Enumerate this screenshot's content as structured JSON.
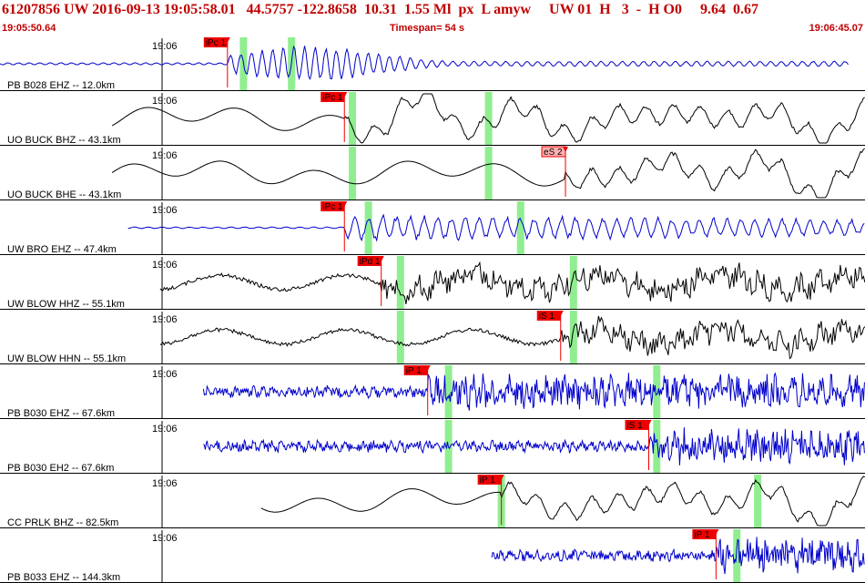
{
  "header": {
    "event_line": "61207856 UW 2016-09-13 19:05:58.01   44.5757 -122.8658  10.31  1.55 Ml  px  L amyw     UW 01  H   3  -  H O0     9.64  0.67",
    "start_time": "19:05:50.64",
    "timespan": "Timespan=  54 s",
    "end_time": "19:06:45.07"
  },
  "colors": {
    "blue_trace": "#0000cc",
    "black_trace": "#000000",
    "pick": "#ee0000",
    "pick_light": "#ffb0b0",
    "window": "#90ee90",
    "divider": "#000000"
  },
  "chart_data": {
    "type": "line",
    "title": "",
    "xlabel": "",
    "ylabel": "",
    "timespan_s": 54,
    "minute_label": "19:06",
    "panels": [
      {
        "label": "PB B028 EHZ -- 12.0km",
        "color": "blue",
        "start_s": 0.0,
        "end_s": 53.0,
        "picks": [
          {
            "type": "iPc 1",
            "t": 14.2
          }
        ],
        "windows": [
          15.2,
          18.2
        ],
        "style": "local"
      },
      {
        "label": "UO BUCK BHZ -- 43.1km",
        "color": "black",
        "start_s": 7.0,
        "end_s": 60.0,
        "picks": [
          {
            "type": "iPc 1",
            "t": 21.5
          }
        ],
        "windows": [
          22.0,
          30.5
        ],
        "style": "long"
      },
      {
        "label": "UO BUCK BHE -- 43.1km",
        "color": "black",
        "start_s": 7.0,
        "end_s": 60.0,
        "picks": [
          {
            "type": "eS 2",
            "t": 35.3,
            "light": true
          }
        ],
        "windows": [
          22.0,
          30.5
        ],
        "style": "long"
      },
      {
        "label": "UW BRO EHZ -- 47.4km",
        "color": "blue",
        "start_s": 8.0,
        "end_s": 61.0,
        "picks": [
          {
            "type": "iPc 1",
            "t": 21.5
          }
        ],
        "windows": [
          23.0,
          32.5
        ],
        "style": "regional"
      },
      {
        "label": "UW BLOW HHZ -- 55.1km",
        "color": "black",
        "start_s": 10.0,
        "end_s": 63.0,
        "picks": [
          {
            "type": "iPd 1",
            "t": 23.8
          }
        ],
        "windows": [
          25.0,
          35.8
        ],
        "style": "broad"
      },
      {
        "label": "UW BLOW HHN -- 55.1km",
        "color": "black",
        "start_s": 10.0,
        "end_s": 63.0,
        "picks": [
          {
            "type": "iS 1",
            "t": 35.0
          }
        ],
        "windows": [
          25.0,
          35.8
        ],
        "style": "broad"
      },
      {
        "label": "PB B030 EHZ -- 67.6km",
        "color": "blue",
        "start_s": 12.7,
        "end_s": 66.0,
        "picks": [
          {
            "type": "iP 1",
            "t": 26.7
          }
        ],
        "windows": [
          28.0,
          41.0
        ],
        "style": "noisy"
      },
      {
        "label": "PB B030 EH2 -- 67.6km",
        "color": "blue",
        "start_s": 12.7,
        "end_s": 66.0,
        "picks": [
          {
            "type": "iS 1",
            "t": 40.5
          }
        ],
        "windows": [
          28.0,
          41.0
        ],
        "style": "noisy"
      },
      {
        "label": "CC PRLK BHZ -- 82.5km",
        "color": "black",
        "start_s": 16.3,
        "end_s": 69.5,
        "picks": [
          {
            "type": "iP 1",
            "t": 31.3
          }
        ],
        "windows": [
          31.3,
          47.3
        ],
        "style": "long"
      },
      {
        "label": "PB B033 EHZ -- 144.3km",
        "color": "blue",
        "start_s": 30.7,
        "end_s": 84.0,
        "picks": [
          {
            "type": "iP 1",
            "t": 44.7
          }
        ],
        "windows": [
          46.0,
          73.3
        ],
        "style": "noisy"
      }
    ]
  }
}
